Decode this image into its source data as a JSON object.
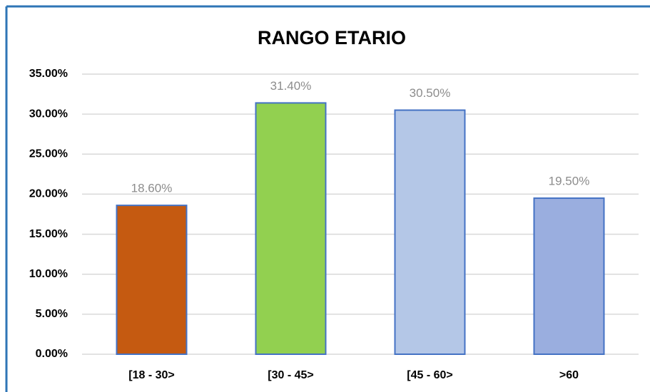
{
  "chart_data": {
    "type": "bar",
    "title": "RANGO  ETARIO",
    "categories": [
      "[18 - 30>",
      "[30 - 45>",
      "[45 - 60>",
      ">60"
    ],
    "values": [
      18.6,
      31.4,
      30.5,
      19.5
    ],
    "value_labels": [
      "18.60%",
      "31.40%",
      "30.50%",
      "19.50%"
    ],
    "colors": [
      "#c55a11",
      "#92d050",
      "#b4c7e7",
      "#9aaedf"
    ],
    "edgecolor": "#4472c4",
    "ylim": [
      0,
      35
    ],
    "yticks": [
      {
        "value": 0,
        "label": "0.00%"
      },
      {
        "value": 5,
        "label": "5.00%"
      },
      {
        "value": 10,
        "label": "10.00%"
      },
      {
        "value": 15,
        "label": "15.00%"
      },
      {
        "value": 20,
        "label": "20.00%"
      },
      {
        "value": 25,
        "label": "25.00%"
      },
      {
        "value": 30,
        "label": "30.00%"
      },
      {
        "value": 35,
        "label": "35.00%"
      }
    ],
    "grid": true
  }
}
